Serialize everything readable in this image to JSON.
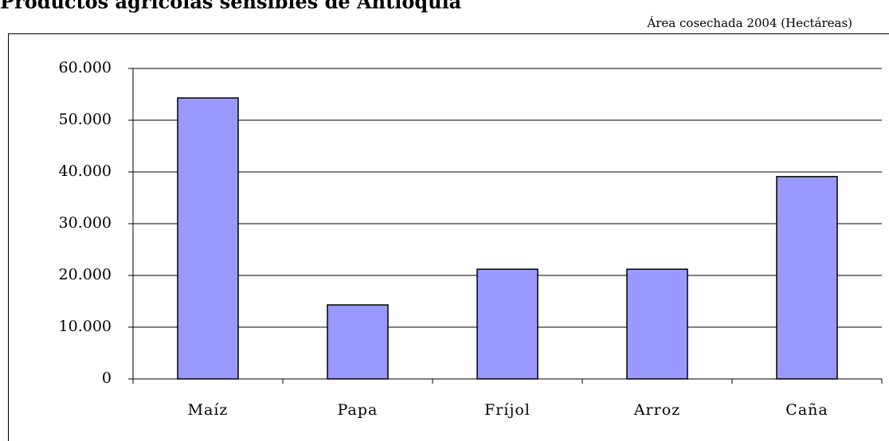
{
  "chart_data": {
    "type": "bar",
    "title": "Productos agrícolas sensibles de Antioquia",
    "subtitle": "Área cosechada 2004 (Hectáreas)",
    "categories": [
      "Maíz",
      "Papa",
      "Fríjol",
      "Arroz",
      "Caña"
    ],
    "values": [
      54300,
      14300,
      21200,
      21200,
      39100
    ],
    "color": "#9999ff",
    "ylim": [
      0,
      60000
    ],
    "yticks": [
      0,
      {
        "value": 10000,
        "label": "10.000"
      },
      {
        "value": 20000,
        "label": "20.000"
      },
      {
        "value": 30000,
        "label": "30.000"
      },
      {
        "value": 40000,
        "label": "40.000"
      },
      {
        "value": 50000,
        "label": "50.000"
      },
      {
        "value": 60000,
        "label": "60.000"
      }
    ],
    "grid": true
  }
}
